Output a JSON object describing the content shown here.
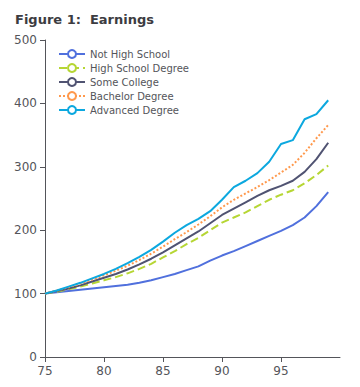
{
  "chart_data": {
    "type": "line",
    "title": "Figure 1:  Earnings",
    "x": [
      75,
      76,
      77,
      78,
      79,
      80,
      81,
      82,
      83,
      84,
      85,
      86,
      87,
      88,
      89,
      90,
      91,
      92,
      93,
      94,
      95,
      96,
      97,
      98,
      99
    ],
    "series": [
      {
        "name": "Not High School",
        "line_style": "solid",
        "values": [
          100,
          102,
          104,
          106,
          108,
          110,
          112,
          114,
          117,
          121,
          126,
          131,
          137,
          143,
          152,
          160,
          167,
          175,
          183,
          191,
          199,
          208,
          220,
          238,
          260
        ]
      },
      {
        "name": "High School Degree",
        "line_style": "dashed",
        "values": [
          100,
          103,
          107,
          111,
          116,
          121,
          126,
          132,
          139,
          147,
          157,
          167,
          178,
          188,
          200,
          212,
          220,
          228,
          238,
          248,
          256,
          263,
          274,
          287,
          302
        ]
      },
      {
        "name": "Some College",
        "line_style": "solid",
        "values": [
          100,
          104,
          108,
          113,
          119,
          125,
          131,
          138,
          146,
          155,
          165,
          176,
          187,
          198,
          211,
          224,
          234,
          244,
          254,
          263,
          270,
          278,
          292,
          312,
          338
        ]
      },
      {
        "name": "Bachelor Degree",
        "line_style": "dotted",
        "values": [
          100,
          105,
          110,
          116,
          122,
          129,
          136,
          144,
          153,
          163,
          174,
          186,
          197,
          209,
          222,
          236,
          248,
          258,
          268,
          279,
          291,
          303,
          322,
          345,
          366
        ]
      },
      {
        "name": "Advanced Degree",
        "line_style": "solid",
        "values": [
          100,
          105,
          111,
          117,
          124,
          131,
          139,
          148,
          158,
          169,
          182,
          196,
          208,
          218,
          230,
          248,
          268,
          278,
          290,
          308,
          336,
          342,
          375,
          383,
          405
        ]
      }
    ],
    "xlim": [
      75,
      100
    ],
    "ylim": [
      0,
      500
    ],
    "xticks": [
      75,
      80,
      85,
      90,
      95
    ],
    "yticks": [
      0,
      100,
      200,
      300,
      400,
      500
    ],
    "grid": false,
    "legend": "upper left"
  }
}
